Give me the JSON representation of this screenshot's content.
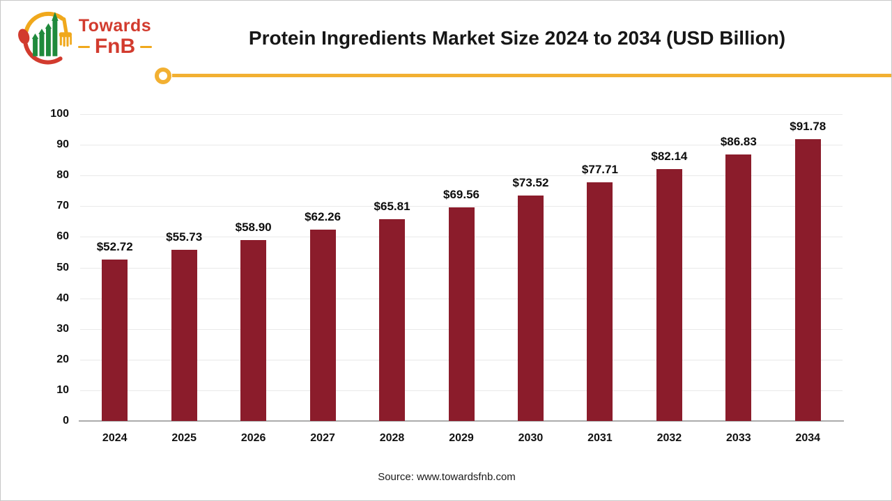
{
  "logo": {
    "brand_top": "Towards",
    "brand_bottom": "FnB"
  },
  "header": {
    "title": "Protein Ingredients Market Size 2024 to 2034 (USD Billion)"
  },
  "chart_data": {
    "type": "bar",
    "title": "Protein Ingredients Market Size 2024 to 2034 (USD Billion)",
    "categories": [
      "2024",
      "2025",
      "2026",
      "2027",
      "2028",
      "2029",
      "2030",
      "2031",
      "2032",
      "2033",
      "2034"
    ],
    "values": [
      52.72,
      55.73,
      58.9,
      62.26,
      65.81,
      69.56,
      73.52,
      77.71,
      82.14,
      86.83,
      91.78
    ],
    "data_label_prefix": "$",
    "xlabel": "",
    "ylabel": "",
    "ylim": [
      0,
      100
    ],
    "ytick_step": 10,
    "grid": true,
    "legend": "none",
    "bar_color": "#8b1c2b"
  },
  "footer": {
    "source": "Source: www.towardsfnb.com"
  },
  "colors": {
    "bar": "#8b1c2b",
    "accent_yellow": "#f2b032",
    "logo_red": "#d23b2e",
    "logo_green": "#1f8a3c",
    "logo_fork_yellow": "#f0a81c",
    "gridline": "#e9e9e9",
    "axis_line": "#ababab",
    "text": "#111111"
  }
}
